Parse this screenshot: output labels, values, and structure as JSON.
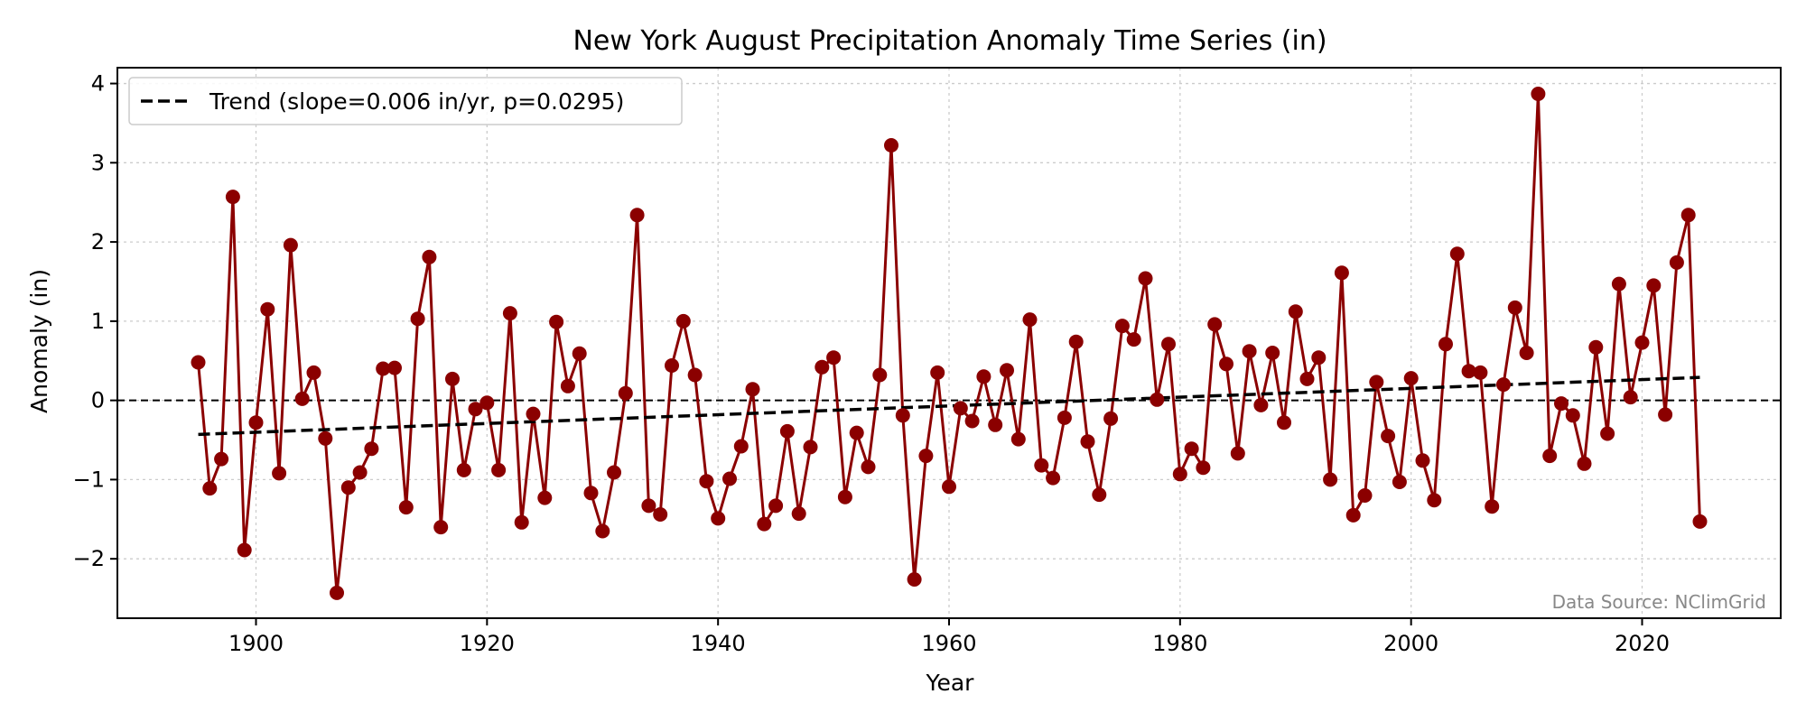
{
  "chart_data": {
    "type": "line",
    "title": "New York August Precipitation Anomaly Time Series (in)",
    "xlabel": "Year",
    "ylabel": "Anomaly (in)",
    "xlim": [
      1888,
      2032
    ],
    "ylim": [
      -2.75,
      4.2
    ],
    "xticks": [
      1900,
      1920,
      1940,
      1960,
      1980,
      2000,
      2020
    ],
    "yticks": [
      -2,
      -1,
      0,
      1,
      2,
      3,
      4
    ],
    "ytick_labels": [
      "−2",
      "−1",
      "0",
      "1",
      "2",
      "3",
      "4"
    ],
    "grid": true,
    "legend_position": "top-left",
    "zero_line": 0,
    "series": [
      {
        "name": "Anomaly",
        "color": "#8b0000",
        "x_start": 1895,
        "values": [
          0.48,
          -1.11,
          -0.74,
          2.57,
          -1.89,
          -0.28,
          1.15,
          -0.92,
          1.96,
          0.02,
          0.35,
          -0.48,
          -2.43,
          -1.1,
          -0.91,
          -0.61,
          0.4,
          0.41,
          -1.35,
          1.03,
          1.81,
          -1.6,
          0.27,
          -0.88,
          -0.11,
          -0.03,
          -0.88,
          1.1,
          -1.54,
          -0.17,
          -1.23,
          0.99,
          0.18,
          0.59,
          -1.17,
          -1.65,
          -0.91,
          0.09,
          2.34,
          -1.33,
          -1.44,
          0.44,
          1.0,
          0.32,
          -1.02,
          -1.49,
          -0.99,
          -0.58,
          0.14,
          -1.56,
          -1.33,
          -0.39,
          -1.43,
          -0.59,
          0.42,
          0.54,
          -1.22,
          -0.41,
          -0.84,
          0.32,
          3.22,
          -0.19,
          -2.26,
          -0.7,
          0.35,
          -1.09,
          -0.1,
          -0.26,
          0.3,
          -0.31,
          0.38,
          -0.49,
          1.02,
          -0.82,
          -0.98,
          -0.22,
          0.74,
          -0.52,
          -1.19,
          -0.23,
          0.94,
          0.77,
          1.54,
          0.01,
          0.71,
          -0.93,
          -0.61,
          -0.85,
          0.96,
          0.46,
          -0.67,
          0.62,
          -0.06,
          0.6,
          -0.28,
          1.12,
          0.27,
          0.54,
          -1.0,
          1.61,
          -1.45,
          -1.2,
          0.23,
          -0.45,
          -1.03,
          0.28,
          -0.76,
          -1.26,
          0.71,
          1.85,
          0.37,
          0.35,
          -1.34,
          0.2,
          1.17,
          0.6,
          3.87,
          -0.7,
          -0.04,
          -0.19,
          -0.8,
          0.67,
          -0.42,
          1.47,
          0.04,
          0.73,
          1.45,
          -0.18,
          1.74,
          2.34,
          -1.53
        ]
      }
    ],
    "trend": {
      "label": "Trend (slope=0.006 in/yr, p=0.0295)",
      "slope": 0.006,
      "p_value": 0.0295,
      "x_start": 1895,
      "x_end": 2025,
      "y_start": -0.43,
      "y_end": 0.29,
      "color": "#000000"
    },
    "annotation": {
      "text": "Data Source: NClimGrid",
      "color": "#888888"
    }
  }
}
